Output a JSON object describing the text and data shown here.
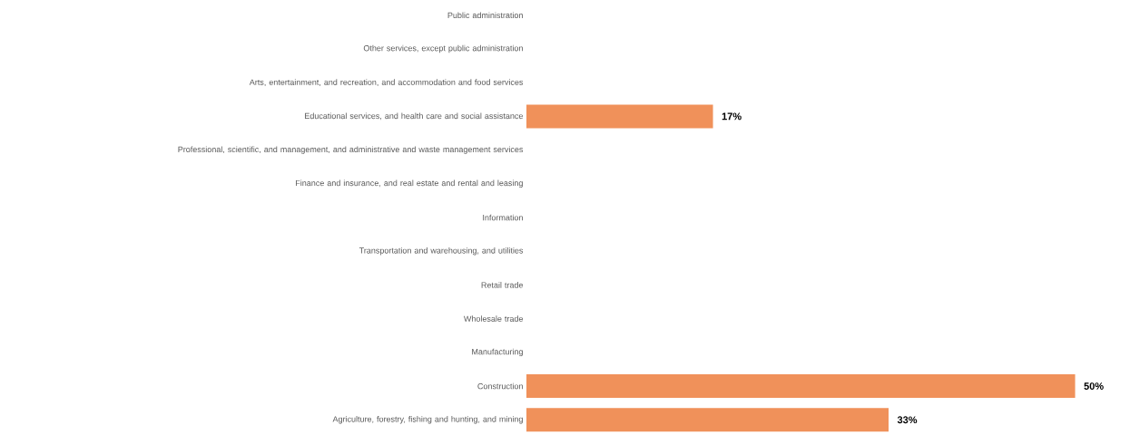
{
  "chart_data": {
    "type": "bar",
    "orientation": "horizontal",
    "categories": [
      "Public administration",
      "Other services, except public administration",
      "Arts, entertainment, and recreation, and accommodation and food services",
      "Educational services, and health care and social assistance",
      "Professional, scientific, and management, and administrative and waste management services",
      "Finance and insurance, and real estate and rental and leasing",
      "Information",
      "Transportation and warehousing, and utilities",
      "Retail trade",
      "Wholesale trade",
      "Manufacturing",
      "Construction",
      "Agriculture, forestry, fishing and hunting, and mining"
    ],
    "values": [
      0,
      0,
      0,
      17,
      0,
      0,
      0,
      0,
      0,
      0,
      0,
      50,
      33
    ],
    "value_labels": [
      null,
      null,
      null,
      "17%",
      null,
      null,
      null,
      null,
      null,
      null,
      null,
      "50%",
      "33%"
    ],
    "color": "#f0915a"
  }
}
